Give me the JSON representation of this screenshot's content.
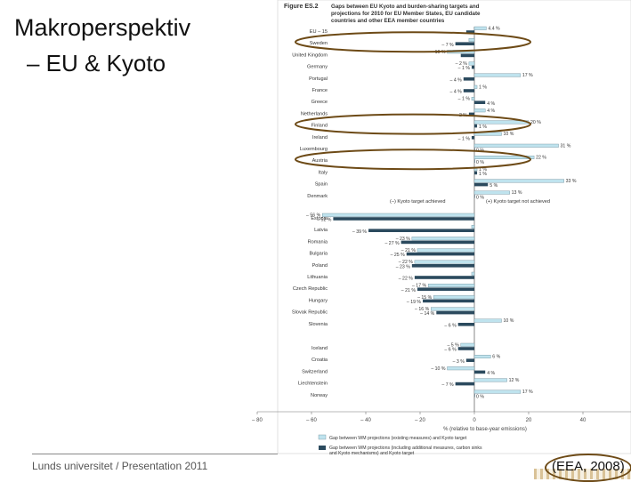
{
  "slide": {
    "title_line1": "Makroperspektiv",
    "title_line2": "– EU & Kyoto",
    "footer_org": "Lunds universitet",
    "footer_sep": " / ",
    "footer_pres": "Presentation 2011",
    "citation": "(EEA, 2008)"
  },
  "colors": {
    "bar_light": "#bfe3ee",
    "bar_dark": "#2b4a5e",
    "highlight": "#6d4a16"
  },
  "chart_data": {
    "type": "bar",
    "orientation": "horizontal",
    "figure_label": "Figure ES.2",
    "title": "Gaps between EU Kyoto and burden-sharing targets and projections for 2010 for EU Member States, EU candidate countries and other EEA member countries",
    "xlabel": "% (relative to base-year emissions)",
    "xlim": [
      -80,
      80
    ],
    "xticks": [
      -80,
      -60,
      -40,
      -20,
      0,
      20,
      40,
      60,
      80
    ],
    "xtick_labels": [
      "– 80",
      "– 60",
      "– 40",
      "– 20",
      "0",
      "20",
      "40",
      "60",
      "80"
    ],
    "legend_inline": [
      "(–) Kyoto target achieved",
      "(+) Kyoto target not achieved"
    ],
    "legend": [
      "Gap between WM projections (existing measures) and Kyoto target",
      "Gap between WM projections (including additional measures, carbon sinks and Kyoto mechanisms) and Kyoto target"
    ],
    "series_names": [
      "wm",
      "wam"
    ],
    "highlighted": [
      "Sweden",
      "Finland",
      "Austria"
    ],
    "groups": [
      {
        "name": "EU-15",
        "categories": [
          {
            "name": "EU – 15",
            "wm": 4.4,
            "wam": -3,
            "wm_label": "4.4 %",
            "wam_label": ""
          },
          {
            "name": "Sweden",
            "wm": -2,
            "wam": -7,
            "wm_label": "",
            "wam_label": "– 7 %"
          },
          {
            "name": "United Kingdom",
            "wm": -10,
            "wam": -5,
            "wm_label": "– 10 %",
            "wam_label": ""
          },
          {
            "name": "Germany",
            "wm": -2,
            "wam": -1,
            "wm_label": "– 2 %",
            "wam_label": "– 1 %"
          },
          {
            "name": "Portugal",
            "wm": 17,
            "wam": -4,
            "wm_label": "17 %",
            "wam_label": "– 4 %"
          },
          {
            "name": "France",
            "wm": 1,
            "wam": -4,
            "wm_label": "1 %",
            "wam_label": "– 4 %"
          },
          {
            "name": "Greece",
            "wm": -1,
            "wam": 4,
            "wm_label": "– 1 %",
            "wam_label": "4 %"
          },
          {
            "name": "Netherlands",
            "wm": 4,
            "wam": -2,
            "wm_label": "4 %",
            "wam_label": "– 2 %"
          },
          {
            "name": "Finland",
            "wm": 20,
            "wam": 1,
            "wm_label": "20 %",
            "wam_label": "1 %"
          },
          {
            "name": "Ireland",
            "wm": 10,
            "wam": -1,
            "wm_label": "10 %",
            "wam_label": "– 1 %"
          },
          {
            "name": "Luxembourg",
            "wm": 31,
            "wam": 0,
            "wm_label": "31 %",
            "wam_label": "0 %"
          },
          {
            "name": "Austria",
            "wm": 22,
            "wam": 0,
            "wm_label": "22 %",
            "wam_label": "0 %"
          },
          {
            "name": "Italy",
            "wm": 1,
            "wam": 1,
            "wm_label": "1 %",
            "wam_label": "1 %"
          },
          {
            "name": "Spain",
            "wm": 33,
            "wam": 5,
            "wm_label": "33 %",
            "wam_label": "5 %"
          },
          {
            "name": "Denmark",
            "wm": 13,
            "wam": 0,
            "wm_label": "13 %",
            "wam_label": "0 %"
          }
        ]
      },
      {
        "name": "New Member States",
        "categories": [
          {
            "name": "Estonia",
            "wm": -56,
            "wam": -52,
            "wm_label": "– 56 %",
            "wam_label": "– 52 %"
          },
          {
            "name": "Latvia",
            "wm": -1,
            "wam": -39,
            "wm_label": "",
            "wam_label": "– 39 %"
          },
          {
            "name": "Romania",
            "wm": -23,
            "wam": -27,
            "wm_label": "– 23 %",
            "wam_label": "– 27 %"
          },
          {
            "name": "Bulgaria",
            "wm": -21,
            "wam": -25,
            "wm_label": "– 21 %",
            "wam_label": "– 25 %"
          },
          {
            "name": "Poland",
            "wm": -22,
            "wam": -23,
            "wm_label": "– 22 %",
            "wam_label": "– 23 %"
          },
          {
            "name": "Lithuania",
            "wm": -1,
            "wam": -22,
            "wm_label": "",
            "wam_label": "– 22 %"
          },
          {
            "name": "Czech Republic",
            "wm": -17,
            "wam": -21,
            "wm_label": "– 17 %",
            "wam_label": "– 21 %"
          },
          {
            "name": "Hungary",
            "wm": -15,
            "wam": -19,
            "wm_label": "– 15 %",
            "wam_label": "– 19 %"
          },
          {
            "name": "Slovak Republic",
            "wm": -16,
            "wam": -14,
            "wm_label": "– 16 %",
            "wam_label": "– 14 %"
          },
          {
            "name": "Slovenia",
            "wm": 10,
            "wam": -6,
            "wm_label": "10 %",
            "wam_label": "– 6 %"
          }
        ]
      },
      {
        "name": "Other EEA countries",
        "categories": [
          {
            "name": "Iceland",
            "wm": -5,
            "wam": -6,
            "wm_label": "– 5 %",
            "wam_label": "– 6 %"
          },
          {
            "name": "Croatia",
            "wm": 6,
            "wam": -3,
            "wm_label": "6 %",
            "wam_label": "– 3 %"
          },
          {
            "name": "Switzerland",
            "wm": -10,
            "wam": 4,
            "wm_label": "– 10 %",
            "wam_label": "4 %"
          },
          {
            "name": "Liechtenstein",
            "wm": 12,
            "wam": -7,
            "wm_label": "12 %",
            "wam_label": "– 7 %"
          },
          {
            "name": "Norway",
            "wm": 17,
            "wam": 0,
            "wm_label": "17 %",
            "wam_label": "0 %"
          }
        ]
      }
    ]
  }
}
